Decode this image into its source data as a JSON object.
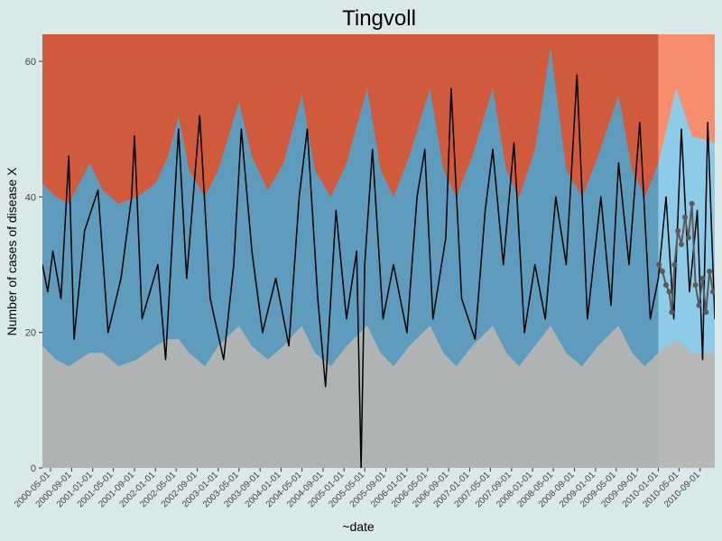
{
  "chart_data": {
    "type": "area",
    "title": "Tingvoll",
    "xlabel": "~date",
    "ylabel": "Number of cases of disease X",
    "ylim": [
      0,
      64
    ],
    "yticks": [
      0,
      20,
      40,
      60
    ],
    "xlim": [
      "2000-03-15",
      "2010-11-25"
    ],
    "forecast_start": "2010-01-01",
    "x_ticks": [
      "2000-05-01",
      "2000-09-01",
      "2001-01-01",
      "2001-05-01",
      "2001-09-01",
      "2002-01-01",
      "2002-05-01",
      "2002-09-01",
      "2003-01-01",
      "2003-05-01",
      "2003-09-01",
      "2004-01-01",
      "2004-05-01",
      "2004-09-01",
      "2005-01-01",
      "2005-05-01",
      "2005-09-01",
      "2006-01-01",
      "2006-05-01",
      "2006-09-01",
      "2007-01-01",
      "2007-05-01",
      "2007-09-01",
      "2008-01-01",
      "2008-05-01",
      "2008-09-01",
      "2009-01-01",
      "2009-05-01",
      "2009-09-01",
      "2010-01-01",
      "2010-05-01",
      "2010-09-01"
    ],
    "colors": {
      "background": "#d9e8e8",
      "lower_band": "#b0b3b3",
      "middle_band": "#5e9bbc",
      "upper_band": "#cf5a3c",
      "forecast_lower_band": "#b7b9b9",
      "forecast_middle_band": "#8dcbe9",
      "forecast_upper_band": "#f98e6f",
      "observed_line": "#000000",
      "forecast_points": "#5a5a5a"
    },
    "threshold_series": [
      {
        "x": "2000-03-15",
        "lower": 18,
        "upper": 42
      },
      {
        "x": "2000-06-01",
        "lower": 16,
        "upper": 40
      },
      {
        "x": "2000-08-15",
        "lower": 15,
        "upper": 39
      },
      {
        "x": "2000-12-15",
        "lower": 17,
        "upper": 45
      },
      {
        "x": "2001-03-01",
        "lower": 17,
        "upper": 41
      },
      {
        "x": "2001-06-01",
        "lower": 15,
        "upper": 39
      },
      {
        "x": "2001-09-15",
        "lower": 16,
        "upper": 40
      },
      {
        "x": "2002-01-01",
        "lower": 18,
        "upper": 42
      },
      {
        "x": "2002-03-15",
        "lower": 19,
        "upper": 46
      },
      {
        "x": "2002-05-15",
        "lower": 19,
        "upper": 52
      },
      {
        "x": "2002-07-15",
        "lower": 17,
        "upper": 44
      },
      {
        "x": "2002-10-15",
        "lower": 15,
        "upper": 40
      },
      {
        "x": "2003-01-01",
        "lower": 18,
        "upper": 44
      },
      {
        "x": "2003-05-01",
        "lower": 21,
        "upper": 54
      },
      {
        "x": "2003-07-15",
        "lower": 18,
        "upper": 46
      },
      {
        "x": "2003-10-15",
        "lower": 16,
        "upper": 41
      },
      {
        "x": "2004-01-15",
        "lower": 18,
        "upper": 45
      },
      {
        "x": "2004-05-01",
        "lower": 21,
        "upper": 55
      },
      {
        "x": "2004-07-15",
        "lower": 17,
        "upper": 44
      },
      {
        "x": "2004-10-15",
        "lower": 15,
        "upper": 40
      },
      {
        "x": "2005-01-15",
        "lower": 18,
        "upper": 45
      },
      {
        "x": "2005-05-15",
        "lower": 21,
        "upper": 56
      },
      {
        "x": "2005-08-01",
        "lower": 17,
        "upper": 44
      },
      {
        "x": "2005-10-15",
        "lower": 15,
        "upper": 40
      },
      {
        "x": "2006-01-15",
        "lower": 18,
        "upper": 46
      },
      {
        "x": "2006-05-15",
        "lower": 21,
        "upper": 56
      },
      {
        "x": "2006-08-01",
        "lower": 17,
        "upper": 44
      },
      {
        "x": "2006-10-15",
        "lower": 15,
        "upper": 40
      },
      {
        "x": "2007-01-15",
        "lower": 18,
        "upper": 46
      },
      {
        "x": "2007-05-15",
        "lower": 21,
        "upper": 56
      },
      {
        "x": "2007-08-01",
        "lower": 17,
        "upper": 44
      },
      {
        "x": "2007-10-15",
        "lower": 15,
        "upper": 40
      },
      {
        "x": "2008-01-15",
        "lower": 18,
        "upper": 47
      },
      {
        "x": "2008-04-15",
        "lower": 21,
        "upper": 62
      },
      {
        "x": "2008-07-15",
        "lower": 17,
        "upper": 44
      },
      {
        "x": "2008-10-15",
        "lower": 15,
        "upper": 40
      },
      {
        "x": "2009-01-15",
        "lower": 18,
        "upper": 46
      },
      {
        "x": "2009-05-15",
        "lower": 21,
        "upper": 55
      },
      {
        "x": "2009-08-01",
        "lower": 17,
        "upper": 44
      },
      {
        "x": "2009-10-15",
        "lower": 15,
        "upper": 40
      },
      {
        "x": "2010-01-01",
        "lower": 17,
        "upper": 45
      },
      {
        "x": "2010-04-15",
        "lower": 19,
        "upper": 56
      },
      {
        "x": "2010-07-15",
        "lower": 17,
        "upper": 49
      },
      {
        "x": "2010-11-25",
        "lower": 17,
        "upper": 48
      }
    ],
    "observed": [
      {
        "x": "2000-03-15",
        "y": 30
      },
      {
        "x": "2000-04-15",
        "y": 26
      },
      {
        "x": "2000-05-15",
        "y": 32
      },
      {
        "x": "2000-07-01",
        "y": 25
      },
      {
        "x": "2000-08-15",
        "y": 46
      },
      {
        "x": "2000-09-15",
        "y": 19
      },
      {
        "x": "2000-11-15",
        "y": 35
      },
      {
        "x": "2001-02-01",
        "y": 41
      },
      {
        "x": "2001-04-01",
        "y": 20
      },
      {
        "x": "2001-06-15",
        "y": 28
      },
      {
        "x": "2001-08-15",
        "y": 40
      },
      {
        "x": "2001-09-01",
        "y": 49
      },
      {
        "x": "2001-10-15",
        "y": 22
      },
      {
        "x": "2002-01-15",
        "y": 30
      },
      {
        "x": "2002-03-01",
        "y": 16
      },
      {
        "x": "2002-05-15",
        "y": 50
      },
      {
        "x": "2002-07-01",
        "y": 28
      },
      {
        "x": "2002-09-15",
        "y": 52
      },
      {
        "x": "2002-11-15",
        "y": 25
      },
      {
        "x": "2003-02-01",
        "y": 16
      },
      {
        "x": "2003-04-01",
        "y": 30
      },
      {
        "x": "2003-05-15",
        "y": 50
      },
      {
        "x": "2003-07-15",
        "y": 32
      },
      {
        "x": "2003-09-15",
        "y": 20
      },
      {
        "x": "2003-12-01",
        "y": 28
      },
      {
        "x": "2004-02-15",
        "y": 18
      },
      {
        "x": "2004-04-15",
        "y": 40
      },
      {
        "x": "2004-06-01",
        "y": 50
      },
      {
        "x": "2004-08-01",
        "y": 25
      },
      {
        "x": "2004-09-15",
        "y": 12
      },
      {
        "x": "2004-11-15",
        "y": 38
      },
      {
        "x": "2005-01-15",
        "y": 22
      },
      {
        "x": "2005-03-15",
        "y": 32
      },
      {
        "x": "2005-04-10",
        "y": 0
      },
      {
        "x": "2005-05-01",
        "y": 30
      },
      {
        "x": "2005-06-15",
        "y": 47
      },
      {
        "x": "2005-08-15",
        "y": 22
      },
      {
        "x": "2005-10-15",
        "y": 30
      },
      {
        "x": "2006-01-01",
        "y": 20
      },
      {
        "x": "2006-03-01",
        "y": 40
      },
      {
        "x": "2006-04-15",
        "y": 47
      },
      {
        "x": "2006-06-01",
        "y": 22
      },
      {
        "x": "2006-08-15",
        "y": 34
      },
      {
        "x": "2006-09-15",
        "y": 56
      },
      {
        "x": "2006-11-15",
        "y": 25
      },
      {
        "x": "2007-02-01",
        "y": 19
      },
      {
        "x": "2007-04-01",
        "y": 38
      },
      {
        "x": "2007-05-15",
        "y": 47
      },
      {
        "x": "2007-07-15",
        "y": 30
      },
      {
        "x": "2007-09-15",
        "y": 48
      },
      {
        "x": "2007-11-15",
        "y": 20
      },
      {
        "x": "2008-01-15",
        "y": 30
      },
      {
        "x": "2008-03-15",
        "y": 22
      },
      {
        "x": "2008-05-15",
        "y": 40
      },
      {
        "x": "2008-07-15",
        "y": 30
      },
      {
        "x": "2008-09-15",
        "y": 58
      },
      {
        "x": "2008-11-15",
        "y": 22
      },
      {
        "x": "2009-02-01",
        "y": 40
      },
      {
        "x": "2009-04-01",
        "y": 24
      },
      {
        "x": "2009-05-15",
        "y": 45
      },
      {
        "x": "2009-07-15",
        "y": 30
      },
      {
        "x": "2009-09-15",
        "y": 51
      },
      {
        "x": "2009-11-15",
        "y": 22
      },
      {
        "x": "2010-01-01",
        "y": 28
      },
      {
        "x": "2010-02-15",
        "y": 40
      },
      {
        "x": "2010-04-01",
        "y": 22
      },
      {
        "x": "2010-05-15",
        "y": 50
      },
      {
        "x": "2010-07-01",
        "y": 26
      },
      {
        "x": "2010-08-15",
        "y": 38
      },
      {
        "x": "2010-09-15",
        "y": 16
      },
      {
        "x": "2010-10-15",
        "y": 51
      },
      {
        "x": "2010-11-25",
        "y": 22
      }
    ],
    "forecast_points": [
      {
        "x": "2010-01-05",
        "y": 30
      },
      {
        "x": "2010-01-25",
        "y": 29
      },
      {
        "x": "2010-02-15",
        "y": 27
      },
      {
        "x": "2010-03-05",
        "y": 26
      },
      {
        "x": "2010-03-20",
        "y": 23
      },
      {
        "x": "2010-04-05",
        "y": 30
      },
      {
        "x": "2010-04-25",
        "y": 35
      },
      {
        "x": "2010-05-15",
        "y": 33
      },
      {
        "x": "2010-06-05",
        "y": 37
      },
      {
        "x": "2010-06-25",
        "y": 34
      },
      {
        "x": "2010-07-15",
        "y": 39
      },
      {
        "x": "2010-08-05",
        "y": 27
      },
      {
        "x": "2010-08-25",
        "y": 24
      },
      {
        "x": "2010-09-15",
        "y": 28
      },
      {
        "x": "2010-10-05",
        "y": 23
      },
      {
        "x": "2010-10-25",
        "y": 29
      },
      {
        "x": "2010-11-15",
        "y": 26
      }
    ]
  }
}
